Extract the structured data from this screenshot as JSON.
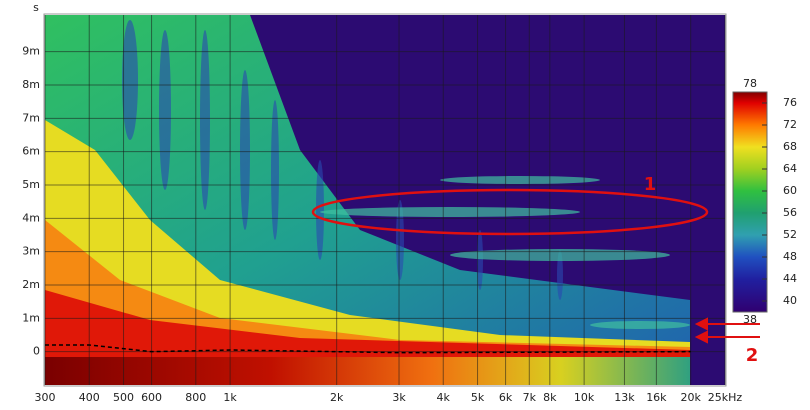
{
  "chart_data": {
    "type": "spectrogram",
    "xlim": [
      300,
      25000
    ],
    "xticks": [
      300,
      400,
      500,
      600,
      800,
      {
        "value": 1000,
        "label": "1k"
      },
      {
        "value": 2000,
        "label": "2k"
      },
      {
        "value": 3000,
        "label": "3k"
      },
      {
        "value": 4000,
        "label": "4k"
      },
      {
        "value": 5000,
        "label": "5k"
      },
      {
        "value": 6000,
        "label": "6k"
      },
      {
        "value": 7000,
        "label": "7k"
      },
      {
        "value": 8000,
        "label": "8k"
      },
      {
        "value": 10000,
        "label": "10k"
      },
      {
        "value": 13000,
        "label": "13k"
      },
      {
        "value": 16000,
        "label": "16k"
      },
      {
        "value": 20000,
        "label": "20k"
      },
      {
        "value": 25000,
        "label": "25kHz"
      }
    ],
    "x_scale": "log",
    "ylabel": "s",
    "ylim": [
      -0.001,
      0.0101
    ],
    "yticks": [
      0,
      {
        "value": 0.001,
        "label": "1m"
      },
      {
        "value": 0.002,
        "label": "2m"
      },
      {
        "value": 0.003,
        "label": "3m"
      },
      {
        "value": 0.004,
        "label": "4m"
      },
      {
        "value": 0.005,
        "label": "5m"
      },
      {
        "value": 0.006,
        "label": "6m"
      },
      {
        "value": 0.007,
        "label": "7m"
      },
      {
        "value": 0.008,
        "label": "8m"
      },
      {
        "value": 0.009,
        "label": "9m"
      }
    ],
    "grid": true,
    "colorbar": {
      "zlim": [
        38,
        78
      ],
      "zticks": [
        76,
        72,
        68,
        64,
        60,
        56,
        52,
        48,
        44,
        40
      ]
    },
    "series": [
      {
        "color": "#000000",
        "x": [
          300,
          400,
          600,
          1000,
          2000,
          3000,
          20000
        ],
        "values": [
          0.0002,
          0.0002,
          0,
          5e-05,
          0,
          -3e-05,
          0
        ]
      }
    ],
    "annotations": [
      "1",
      "2"
    ]
  }
}
